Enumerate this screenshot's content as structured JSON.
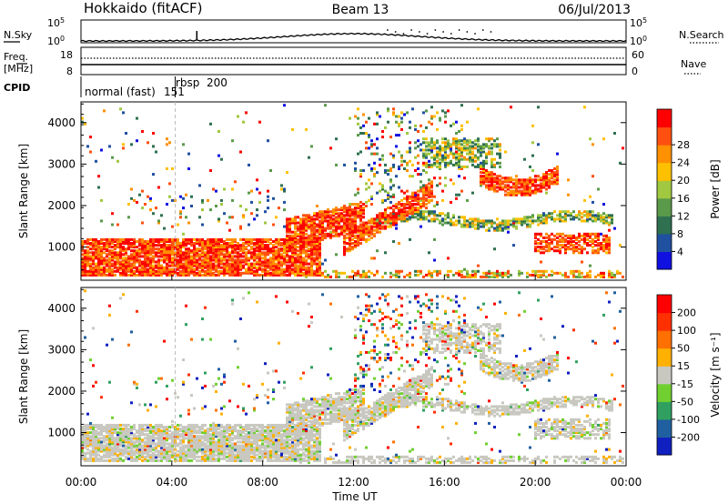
{
  "header": {
    "title_left": "Hokkaido (fitACF)",
    "title_center": "Beam 13",
    "title_right": "06/Jul/2013"
  },
  "strip_nsky": {
    "left_label": "N.Sky",
    "right_label": "N.Search",
    "tick_top_left": "10^5",
    "tick_bottom_left": "10^0",
    "tick_top_right": "10^5",
    "tick_bottom_right": "10^0"
  },
  "strip_freq": {
    "left_label_1": "Freq.",
    "left_label_2": "[MHz]",
    "right_label": "Nave",
    "tick_top_left": "18",
    "tick_bottom_left": "8",
    "tick_top_right": "60",
    "tick_bottom_right": "0"
  },
  "cpid": {
    "label": "CPID",
    "mode_1_name": "normal (fast)",
    "mode_1_id": "151",
    "mode_2_name": "rbsp",
    "mode_2_id": "200"
  },
  "chart_data": [
    {
      "type": "heatmap",
      "name": "power",
      "ylabel": "Slant Range [km]",
      "ylim": [
        200,
        4500
      ],
      "yticks": [
        "1000",
        "2000",
        "3000",
        "4000"
      ],
      "ytick_values": [
        1000,
        2000,
        3000,
        4000
      ],
      "colorbar_label": "Power [dB]",
      "colorbar_ticks": [
        "4",
        "8",
        "12",
        "16",
        "20",
        "24",
        "28"
      ],
      "colorbar_ticks_direction": "top-to-bottom: 28, 24, 20, 16, 12, 8, 4",
      "colors": [
        "#1010e0",
        "#2050a0",
        "#2e7050",
        "#5a9a4a",
        "#a0c840",
        "#ffc000",
        "#ff9000",
        "#ff5010",
        "#ff0000"
      ]
    },
    {
      "type": "heatmap",
      "name": "velocity",
      "ylabel": "Slant Range [km]",
      "ylim": [
        200,
        4500
      ],
      "yticks": [
        "1000",
        "2000",
        "3000",
        "4000"
      ],
      "ytick_values": [
        1000,
        2000,
        3000,
        4000
      ],
      "colorbar_label": "Velocity [m s^-1]",
      "colorbar_ticks": [
        "200",
        "100",
        "50",
        "15",
        "-15",
        "-50",
        "-100",
        "-200"
      ],
      "colors": [
        "#1020c0",
        "#2060a0",
        "#30a060",
        "#70d030",
        "#c8c8c0",
        "#ffb000",
        "#ff7000",
        "#ff3000",
        "#ff0000"
      ]
    }
  ],
  "x_axis": {
    "label": "Time UT",
    "ticks": [
      "00:00",
      "04:00",
      "08:00",
      "12:00",
      "16:00",
      "20:00",
      "00:00"
    ],
    "tick_hours": [
      0,
      4,
      8,
      12,
      16,
      20,
      24
    ]
  }
}
